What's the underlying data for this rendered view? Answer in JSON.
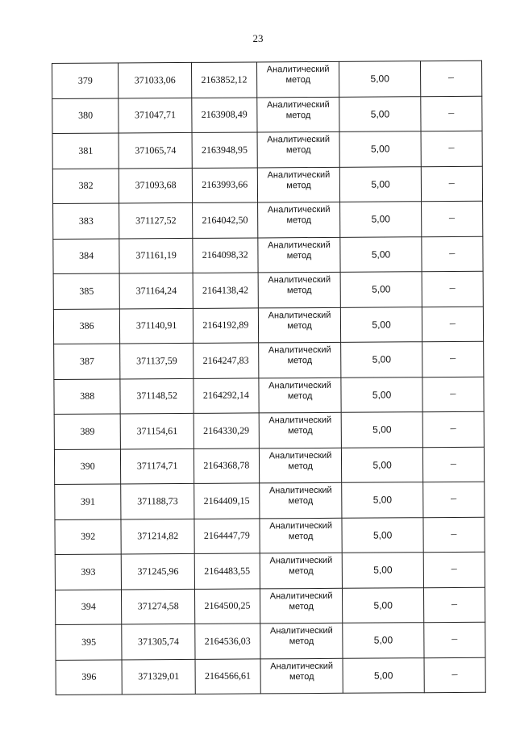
{
  "page_number": "23",
  "rows": [
    [
      "379",
      "371033,06",
      "2163852,12",
      "Аналитический метод",
      "5,00",
      "–"
    ],
    [
      "380",
      "371047,71",
      "2163908,49",
      "Аналитический метод",
      "5,00",
      "–"
    ],
    [
      "381",
      "371065,74",
      "2163948,95",
      "Аналитический метод",
      "5,00",
      "–"
    ],
    [
      "382",
      "371093,68",
      "2163993,66",
      "Аналитический метод",
      "5,00",
      "–"
    ],
    [
      "383",
      "371127,52",
      "2164042,50",
      "Аналитический метод",
      "5,00",
      "–"
    ],
    [
      "384",
      "371161,19",
      "2164098,32",
      "Аналитический метод",
      "5,00",
      "–"
    ],
    [
      "385",
      "371164,24",
      "2164138,42",
      "Аналитический метод",
      "5,00",
      "–"
    ],
    [
      "386",
      "371140,91",
      "2164192,89",
      "Аналитический метод",
      "5,00",
      "–"
    ],
    [
      "387",
      "371137,59",
      "2164247,83",
      "Аналитический метод",
      "5,00",
      "–"
    ],
    [
      "388",
      "371148,52",
      "2164292,14",
      "Аналитический метод",
      "5,00",
      "–"
    ],
    [
      "389",
      "371154,61",
      "2164330,29",
      "Аналитический метод",
      "5,00",
      "–"
    ],
    [
      "390",
      "371174,71",
      "2164368,78",
      "Аналитический метод",
      "5,00",
      "–"
    ],
    [
      "391",
      "371188,73",
      "2164409,15",
      "Аналитический метод",
      "5,00",
      "–"
    ],
    [
      "392",
      "371214,82",
      "2164447,79",
      "Аналитический метод",
      "5,00",
      "–"
    ],
    [
      "393",
      "371245,96",
      "2164483,55",
      "Аналитический метод",
      "5,00",
      "–"
    ],
    [
      "394",
      "371274,58",
      "2164500,25",
      "Аналитический метод",
      "5,00",
      "–"
    ],
    [
      "395",
      "371305,74",
      "2164536,03",
      "Аналитический метод",
      "5,00",
      "–"
    ],
    [
      "396",
      "371329,01",
      "2164566,61",
      "Аналитический метод",
      "5,00",
      "–"
    ]
  ]
}
